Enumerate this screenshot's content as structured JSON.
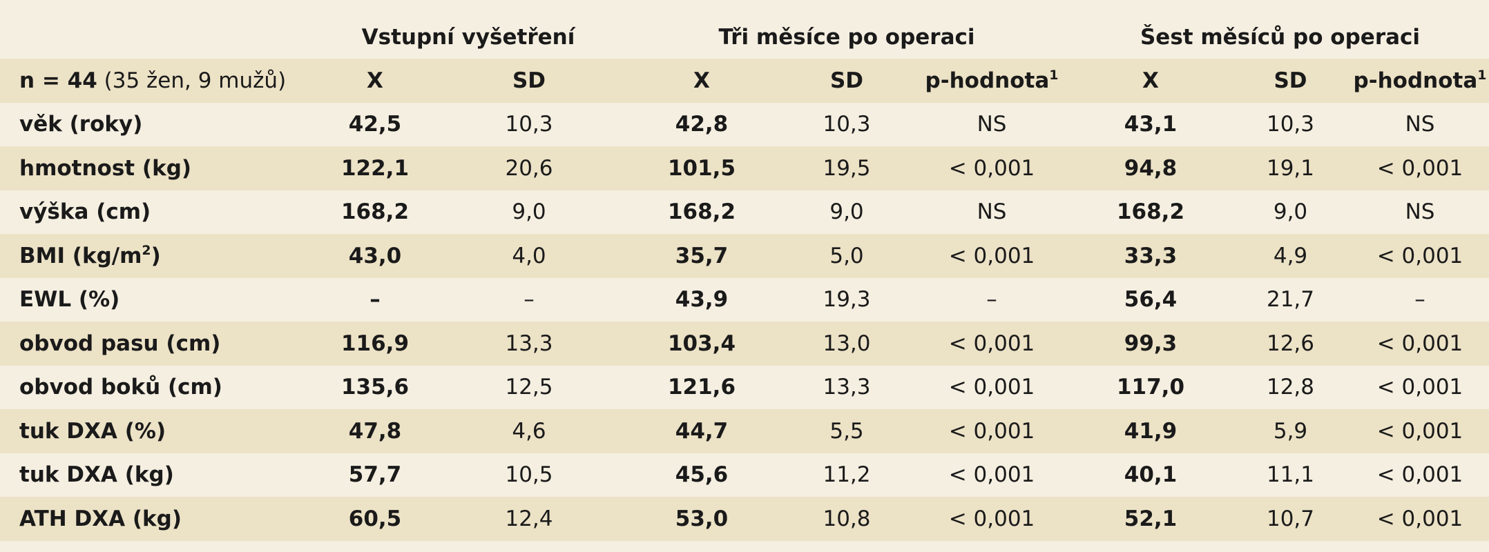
{
  "table": {
    "groups": [
      "",
      "Vstupní vyšetření",
      "Tři měsíce po operaci",
      "Šest měsíců po operaci"
    ],
    "subheader": {
      "label_bold": "n = 44",
      "label_rest": " (35 žen, 9 mužů)",
      "cols": [
        "X",
        "SD",
        "X",
        "SD",
        "p-hodnota",
        "X",
        "SD",
        "p-hodnota"
      ],
      "footnote_mark": "1"
    },
    "rows": [
      {
        "label": "věk (roky)",
        "values": [
          "42,5",
          "10,3",
          "42,8",
          "10,3",
          "NS",
          "43,1",
          "10,3",
          "NS"
        ]
      },
      {
        "label": "hmotnost (kg)",
        "values": [
          "122,1",
          "20,6",
          "101,5",
          "19,5",
          "< 0,001",
          "94,8",
          "19,1",
          "< 0,001"
        ]
      },
      {
        "label": "výška (cm)",
        "values": [
          "168,2",
          "9,0",
          "168,2",
          "9,0",
          "NS",
          "168,2",
          "9,0",
          "NS"
        ]
      },
      {
        "label": "BMI (kg/m",
        "label_sup": "2",
        "label_end": ")",
        "values": [
          "43,0",
          "4,0",
          "35,7",
          "5,0",
          "< 0,001",
          "33,3",
          "4,9",
          "< 0,001"
        ]
      },
      {
        "label": "EWL (%)",
        "values": [
          "–",
          "–",
          "43,9",
          "19,3",
          "–",
          "56,4",
          "21,7",
          "–"
        ]
      },
      {
        "label": "obvod pasu (cm)",
        "values": [
          "116,9",
          "13,3",
          "103,4",
          "13,0",
          "< 0,001",
          "99,3",
          "12,6",
          "< 0,001"
        ]
      },
      {
        "label": "obvod boků (cm)",
        "values": [
          "135,6",
          "12,5",
          "121,6",
          "13,3",
          "< 0,001",
          "117,0",
          "12,8",
          "< 0,001"
        ]
      },
      {
        "label": "tuk DXA (%)",
        "values": [
          "47,8",
          "4,6",
          "44,7",
          "5,5",
          "< 0,001",
          "41,9",
          "5,9",
          "< 0,001"
        ]
      },
      {
        "label": "tuk DXA (kg)",
        "values": [
          "57,7",
          "10,5",
          "45,6",
          "11,2",
          "< 0,001",
          "40,1",
          "11,1",
          "< 0,001"
        ]
      },
      {
        "label": "ATH DXA (kg)",
        "values": [
          "60,5",
          "12,4",
          "53,0",
          "10,8",
          "< 0,001",
          "52,1",
          "10,7",
          "< 0,001"
        ]
      }
    ]
  }
}
